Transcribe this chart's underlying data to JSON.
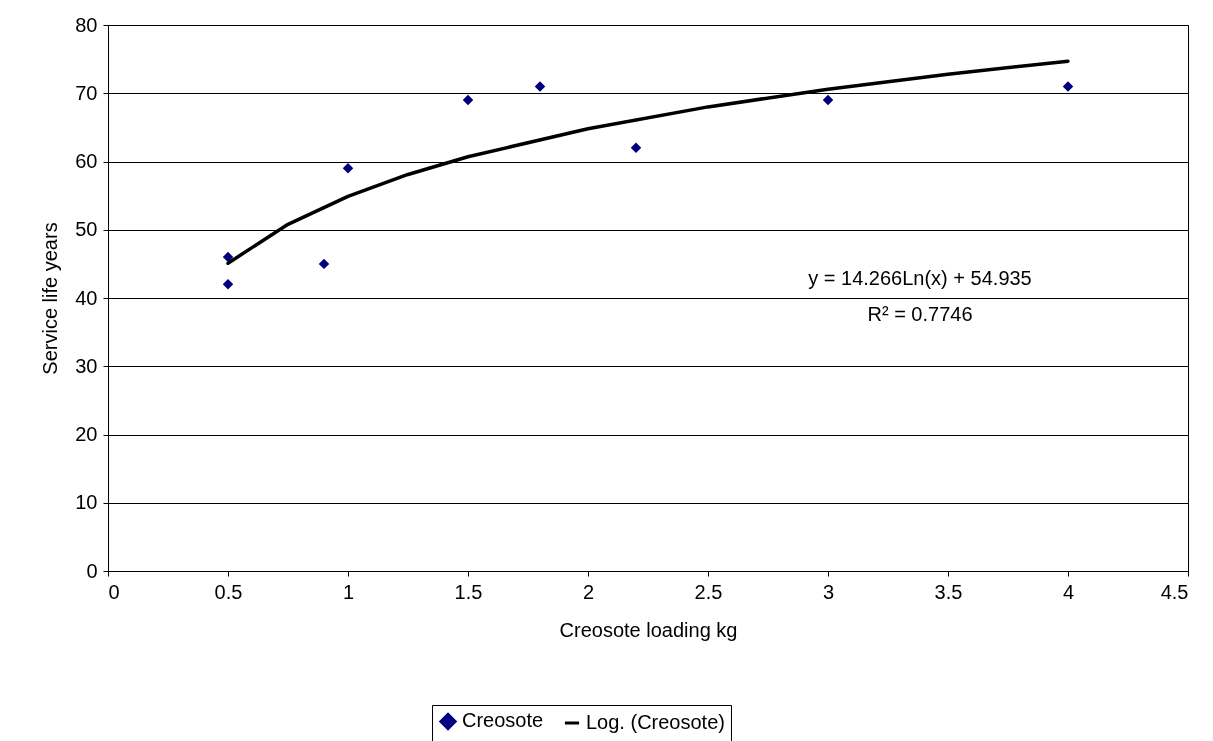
{
  "chart_data": {
    "type": "scatter",
    "xlabel": "Creosote loading kg",
    "ylabel": "Service life years",
    "series": [
      {
        "name": "Creosote",
        "type": "scatter",
        "color": "#000080",
        "marker": "diamond",
        "x": [
          0.5,
          0.5,
          0.9,
          1,
          1.5,
          1.8,
          2.2,
          3,
          4
        ],
        "values": [
          46,
          42,
          45,
          59,
          69,
          71,
          62,
          69,
          71
        ]
      },
      {
        "name": "Log. (Creosote)",
        "type": "line",
        "color": "#000000",
        "marker": "none",
        "line_style": "solid",
        "x": [
          0.5,
          0.75,
          1,
          1.25,
          1.5,
          2,
          2.5,
          3,
          3.5,
          4
        ],
        "values": [
          45.1,
          50.8,
          54.9,
          58.1,
          60.7,
          64.8,
          68.0,
          70.6,
          72.8,
          74.7
        ]
      }
    ],
    "xlim": [
      0,
      4.5
    ],
    "xticks": [
      0,
      0.5,
      1,
      1.5,
      2,
      2.5,
      3,
      3.5,
      4,
      4.5
    ],
    "ylim": [
      0,
      80
    ],
    "yticks": [
      0,
      10,
      20,
      30,
      40,
      50,
      60,
      70,
      80
    ],
    "grid": "y",
    "legend": "bottom",
    "annotations": [
      "y = 14.266Ln(x) + 54.935",
      "R² = 0.7746"
    ]
  }
}
